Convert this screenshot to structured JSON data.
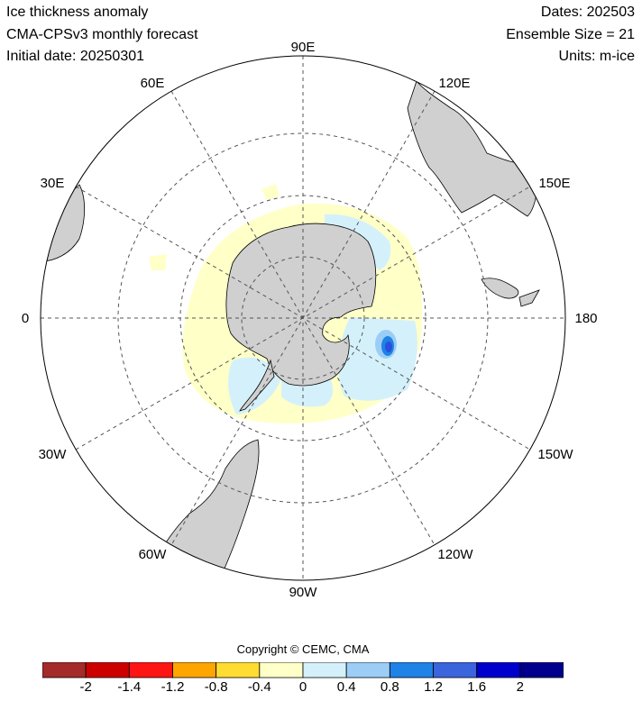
{
  "header": {
    "title": "Ice thickness anomaly",
    "model": "CMA-CPSv3 monthly forecast",
    "initial_date": "Initial date: 20250301",
    "dates": "Dates: 202503",
    "ensemble": "Ensemble Size = 21",
    "units": "Units: m-ice"
  },
  "map": {
    "projection": "south polar stereographic",
    "longitude_labels": [
      "90E",
      "120E",
      "150E",
      "180",
      "150W",
      "120W",
      "90W",
      "60W",
      "30W",
      "0",
      "30E",
      "60E"
    ],
    "colors": {
      "land": "#d0d0d0",
      "ice_positive_small": "#d4f1fb",
      "ice_negative_small": "#ffffc8",
      "ice_positive_mid": "#9ccdf6",
      "ice_positive_high": "#1e82e6",
      "ice_positive_strong": "#2850dc",
      "grid": "#555555"
    }
  },
  "legend": {
    "copyright": "Copyright © CEMC, CMA",
    "colors": [
      "#a52a2a",
      "#cd0000",
      "#ff1414",
      "#ffa500",
      "#ffdc32",
      "#ffffc8",
      "#d4f1fb",
      "#9ccdf6",
      "#1e82e6",
      "#3c64dc",
      "#0000cd",
      "#00008c"
    ],
    "ticks": [
      "-2",
      "-1.4",
      "-1.2",
      "-0.8",
      "-0.4",
      "0",
      "0.4",
      "0.8",
      "1.2",
      "1.6",
      "2"
    ]
  }
}
